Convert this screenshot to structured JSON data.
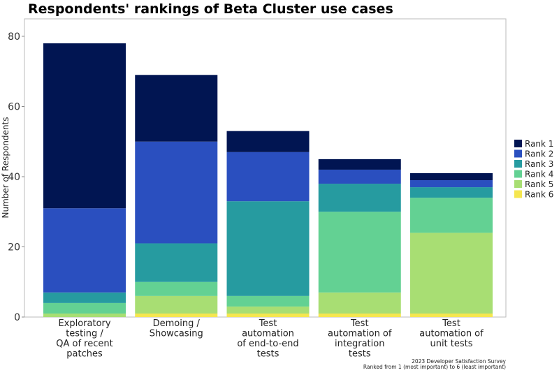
{
  "chart_data": {
    "type": "bar",
    "stacked": true,
    "title": "Respondents' rankings of Beta Cluster use cases",
    "ylabel": "Number of Respondents",
    "xlabel": "",
    "ylim": [
      0,
      85
    ],
    "yticks": [
      0,
      20,
      40,
      60,
      80
    ],
    "grid": false,
    "legend_position": "right",
    "categories": [
      [
        "Exploratory",
        "testing /",
        "QA of recent",
        "patches"
      ],
      [
        "Demoing /",
        "Showcasing"
      ],
      [
        "Test",
        "automation",
        "of end-to-end",
        "tests"
      ],
      [
        "Test",
        "automation of",
        "integration",
        "tests"
      ],
      [
        "Test",
        "automation of",
        "unit tests"
      ]
    ],
    "series": [
      {
        "name": "Rank 1",
        "color": "#011552",
        "values": [
          47,
          19,
          6,
          3,
          2
        ]
      },
      {
        "name": "Rank 2",
        "color": "#2a4fbf",
        "values": [
          24,
          29,
          14,
          4,
          2
        ]
      },
      {
        "name": "Rank 3",
        "color": "#269ba0",
        "values": [
          3,
          11,
          27,
          8,
          3
        ]
      },
      {
        "name": "Rank 4",
        "color": "#63d193",
        "values": [
          3,
          4,
          3,
          23,
          10
        ]
      },
      {
        "name": "Rank 5",
        "color": "#a8de73",
        "values": [
          1,
          5,
          2,
          6,
          23
        ]
      },
      {
        "name": "Rank 6",
        "color": "#f5e64f",
        "values": [
          0,
          1,
          1,
          1,
          1
        ]
      }
    ],
    "caption": [
      "2023 Developer Satisfaction Survey",
      "Ranked from 1 (most important) to 6 (least important)"
    ]
  }
}
